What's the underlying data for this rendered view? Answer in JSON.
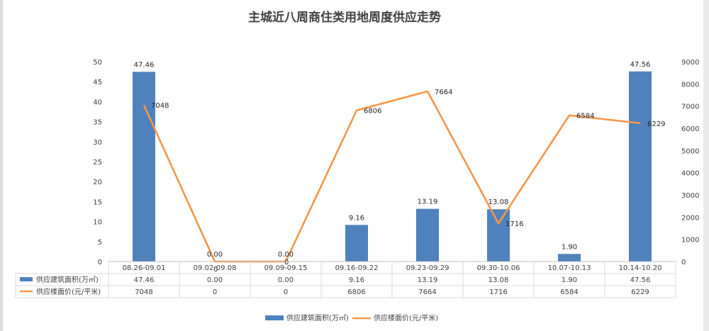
{
  "chart_data": {
    "type": "bar",
    "title": "主城近八周商住类用地周度供应走势",
    "categories": [
      "08.26-09.01",
      "09.02-09.08",
      "09.09-09.15",
      "09.16-09.22",
      "09.23-09.29",
      "09.30-10.06",
      "10.07-10.13",
      "10.14-10.20"
    ],
    "series": [
      {
        "name": "供应建筑面积(万㎡)",
        "type": "bar",
        "axis": "left",
        "color": "#4f81bd",
        "values": [
          47.46,
          0.0,
          0.0,
          9.16,
          13.19,
          13.08,
          1.9,
          47.56
        ],
        "labels": [
          "47.46",
          "0.00",
          "0.00",
          "9.16",
          "13.19",
          "13.08",
          "1.90",
          "47.56"
        ]
      },
      {
        "name": "供应楼面价(元/平米)",
        "type": "line",
        "axis": "right",
        "color": "#f79646",
        "values": [
          7048,
          0,
          0,
          6806,
          7664,
          1716,
          6584,
          6229
        ],
        "labels": [
          "7048",
          "0",
          "0",
          "6806",
          "7664",
          "1716",
          "6584",
          "6229"
        ]
      }
    ],
    "y_left": {
      "range": [
        0,
        50
      ],
      "ticks": [
        "0",
        "5",
        "10",
        "15",
        "20",
        "25",
        "30",
        "35",
        "40",
        "45",
        "50"
      ]
    },
    "y_right": {
      "range": [
        0,
        9000
      ],
      "ticks": [
        "0",
        "1000",
        "2000",
        "3000",
        "4000",
        "5000",
        "6000",
        "7000",
        "8000",
        "9000"
      ]
    },
    "legend_position": "bottom",
    "data_table": true,
    "grid": false
  }
}
